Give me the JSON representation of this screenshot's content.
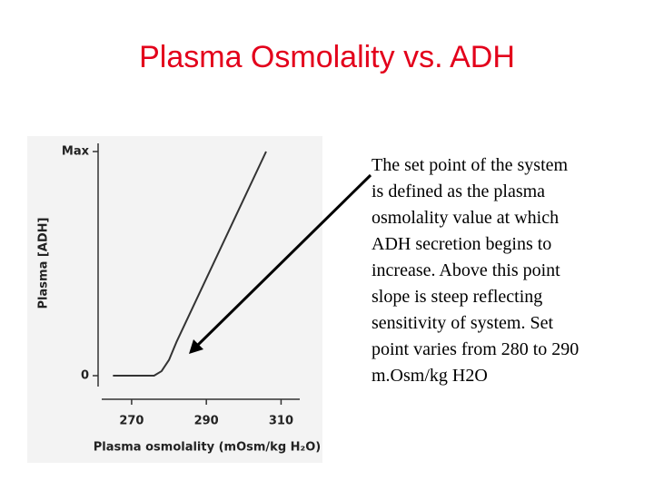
{
  "title": "Plasma Osmolality vs. ADH",
  "notes": [
    "The set point of the system",
    "is defined as the plasma",
    "osmolality value at which",
    "ADH secretion begins to",
    "increase.  Above this point",
    "slope is steep reflecting",
    "sensitivity of system.  Set",
    "point varies from 280 to 290",
    "m.Osm/kg H2O"
  ],
  "chart_data": {
    "type": "line",
    "x_label": "Plasma osmolality (mOsm/kg H₂O)",
    "y_label": "Plasma [ADH]",
    "x": [
      265,
      276,
      278,
      280,
      282,
      306
    ],
    "series": [
      {
        "name": "ADH",
        "color": "#333333",
        "values": [
          0,
          0,
          0.02,
          0.07,
          0.15,
          1.0
        ]
      }
    ],
    "xlim": [
      262,
      315
    ],
    "xticks": [
      270,
      290,
      310
    ],
    "ylim": [
      0,
      1
    ],
    "yticks": [
      0,
      {
        "value": 1,
        "label": "Max"
      }
    ]
  }
}
